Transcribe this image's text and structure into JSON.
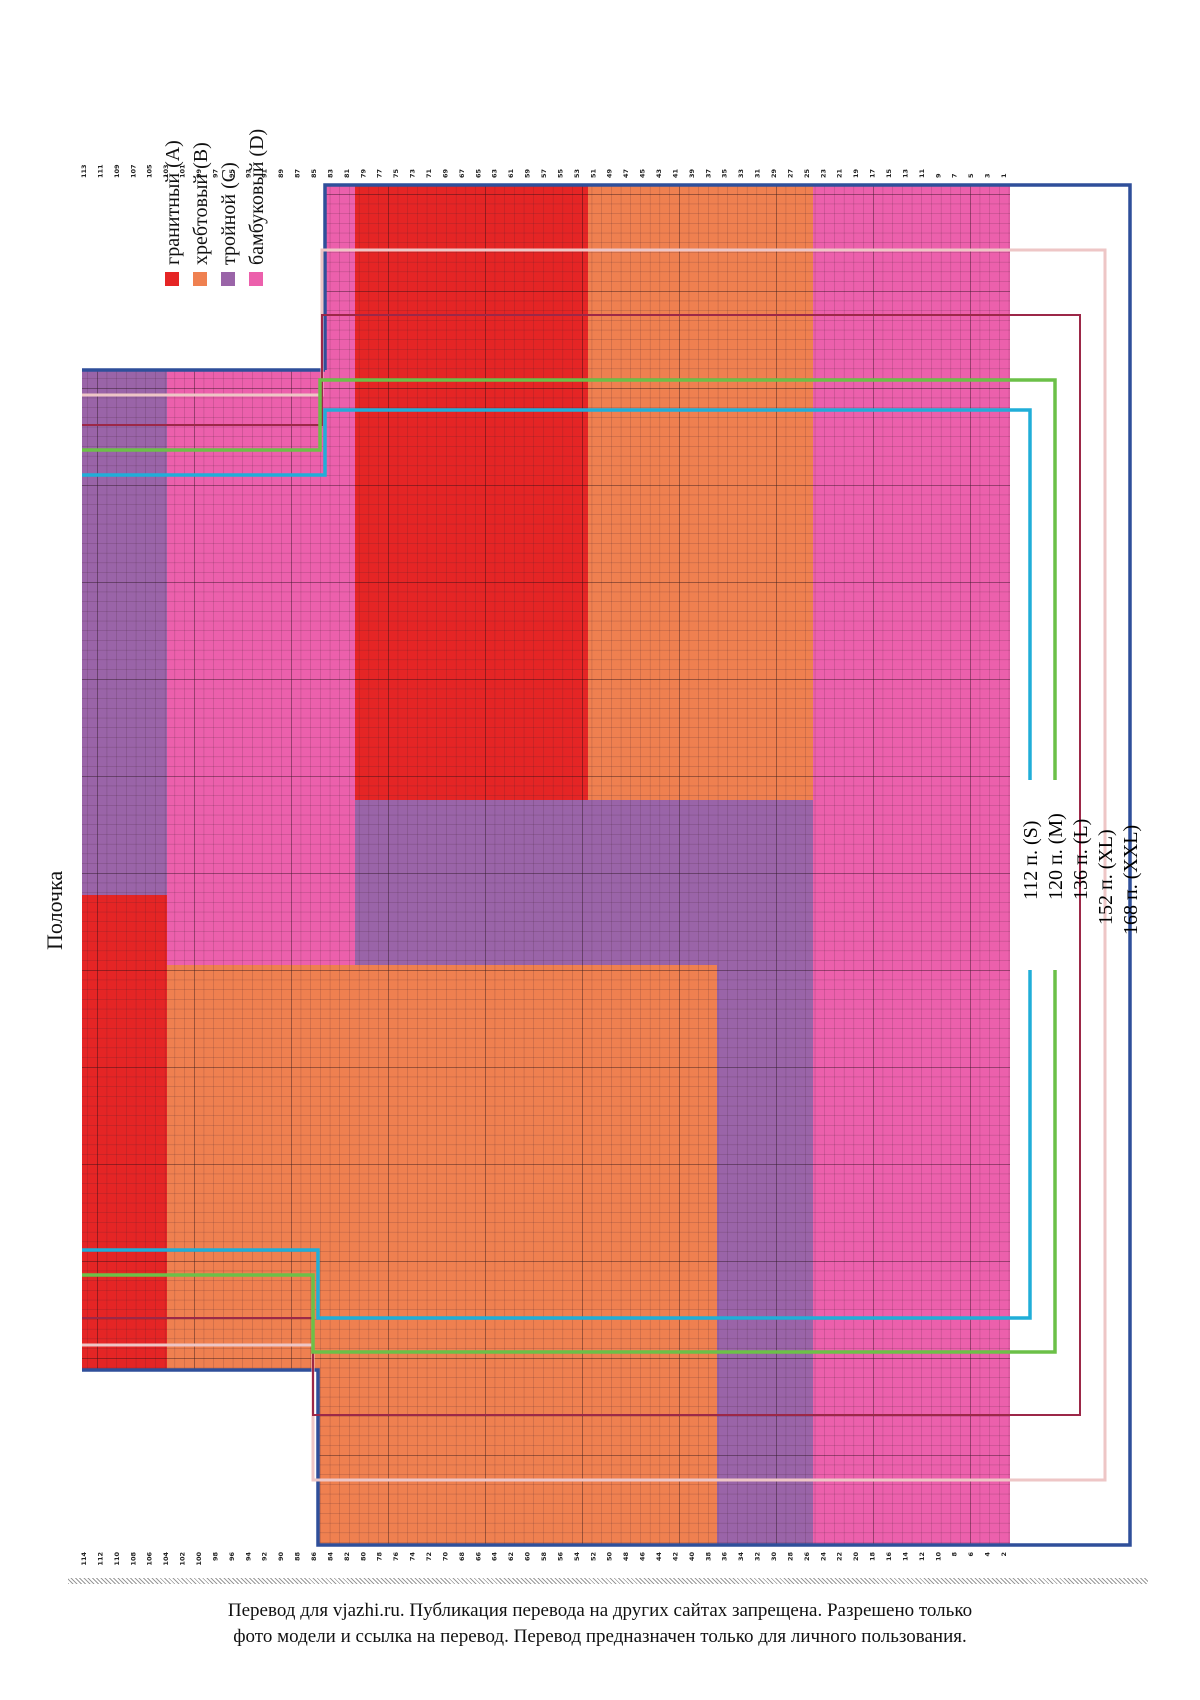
{
  "title": "Полочка",
  "legend": [
    {
      "label": "гранитный (A)",
      "color": "#e52525"
    },
    {
      "label": "хребтовый (B)",
      "color": "#ef8050"
    },
    {
      "label": "тройной (C)",
      "color": "#9a64a8"
    },
    {
      "label": "бамбуковый (D)",
      "color": "#ec60ac"
    }
  ],
  "sizes": [
    {
      "label": "112 п. (S)",
      "color": "#20aed8"
    },
    {
      "label": "120 п. (M)",
      "color": "#6cc048"
    },
    {
      "label": "136 п. (L)",
      "color": "#9c2848"
    },
    {
      "label": "152 п. (XL)",
      "color": "#eec6c6"
    },
    {
      "label": "168 п. (XXL)",
      "color": "#2f4f9a"
    }
  ],
  "row_numbers": {
    "top_odd": [
      "113",
      "111",
      "109",
      "107",
      "105",
      "103",
      "101",
      "99",
      "97",
      "95",
      "93",
      "91",
      "89",
      "87",
      "85",
      "83",
      "81",
      "79",
      "77",
      "75",
      "73",
      "71",
      "69",
      "67",
      "65",
      "63",
      "61",
      "59",
      "57",
      "55",
      "53",
      "51",
      "49",
      "47",
      "45",
      "43",
      "41",
      "39",
      "37",
      "35",
      "33",
      "31",
      "29",
      "27",
      "25",
      "23",
      "21",
      "19",
      "17",
      "15",
      "13",
      "11",
      "9",
      "7",
      "5",
      "3",
      "1"
    ],
    "bottom_even": [
      "114",
      "112",
      "110",
      "108",
      "106",
      "104",
      "102",
      "100",
      "98",
      "96",
      "94",
      "92",
      "90",
      "88",
      "86",
      "84",
      "82",
      "80",
      "78",
      "76",
      "74",
      "72",
      "70",
      "68",
      "66",
      "64",
      "62",
      "60",
      "58",
      "56",
      "54",
      "52",
      "50",
      "48",
      "46",
      "44",
      "42",
      "40",
      "38",
      "36",
      "34",
      "32",
      "30",
      "28",
      "26",
      "24",
      "22",
      "20",
      "18",
      "16",
      "14",
      "12",
      "10",
      "8",
      "6",
      "4",
      "2"
    ]
  },
  "footer": [
    "Перевод для vjazhi.ru. Публикация перевода на других сайтах запрещена. Разрешено только",
    "фото модели и ссылка на перевод.  Перевод предназначен только для личного пользования."
  ]
}
